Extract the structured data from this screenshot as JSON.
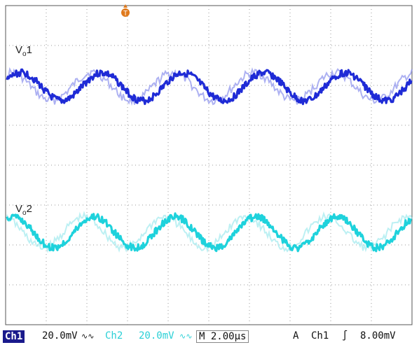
{
  "display": {
    "colors": {
      "ch1": "#1f2bd6",
      "ch1_faint": "#8a90ec",
      "ch2": "#1ed2dc",
      "ch2_faint": "#9fe9ee",
      "grid": "#9a9a9a",
      "trigger": "#e07a1c"
    },
    "grid": {
      "divisions_x": 10,
      "divisions_y": 8
    },
    "trigger_marker_icon": "trigger-position-icon",
    "trigger_marker_label": "T"
  },
  "traces": [
    {
      "label_main": "V",
      "label_sub": "o",
      "label_suffix": "1",
      "periods_on_screen": 5
    },
    {
      "label_main": "V",
      "label_sub": "o",
      "label_suffix": "2",
      "periods_on_screen": 5
    }
  ],
  "status": {
    "ch1_badge": "Ch1",
    "ch1_scale": "20.0mV",
    "ch1_coupling": "∿∿",
    "ch2_label": "Ch2",
    "ch2_scale": "20.0mV",
    "ch2_coupling": "∿∿",
    "timebase": "M 2.00µs",
    "acq_mode": "A",
    "trigger_source": "Ch1",
    "trigger_slope": "∫",
    "trigger_level": "8.00mV"
  }
}
